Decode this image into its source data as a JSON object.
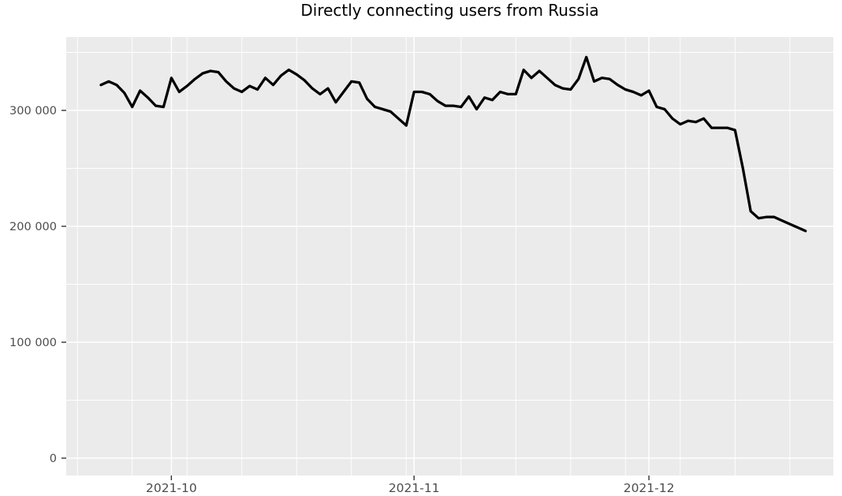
{
  "chart_data": {
    "type": "line",
    "title": "Directly connecting users from Russia",
    "xlabel": "",
    "ylabel": "",
    "legend": "none",
    "grid": "on",
    "panel_bg": "#EBEBEB",
    "grid_color": "#FFFFFF",
    "axis_text_color": "#4D4D4D",
    "tick_color": "#333333",
    "ylim": [
      0,
      364000
    ],
    "x_range": [
      "2021-09-22",
      "2021-12-21"
    ],
    "x_ticks": [
      {
        "label": "2021-10",
        "date": "2021-10-01"
      },
      {
        "label": "2021-11",
        "date": "2021-11-01"
      },
      {
        "label": "2021-12",
        "date": "2021-12-01"
      }
    ],
    "y_ticks": [
      {
        "label": "0",
        "value": 0
      },
      {
        "label": "100 000",
        "value": 100000
      },
      {
        "label": "200 000",
        "value": 200000
      },
      {
        "label": "300 000",
        "value": 300000
      }
    ],
    "y_minor_ticks": [
      50000,
      150000,
      250000,
      350000
    ],
    "series": [
      {
        "name": "directly-connecting-users",
        "color": "#000000",
        "frequency": "daily",
        "dates": [
          "2021-09-22",
          "2021-09-23",
          "2021-09-24",
          "2021-09-25",
          "2021-09-26",
          "2021-09-27",
          "2021-09-28",
          "2021-09-29",
          "2021-09-30",
          "2021-10-01",
          "2021-10-02",
          "2021-10-03",
          "2021-10-04",
          "2021-10-05",
          "2021-10-06",
          "2021-10-07",
          "2021-10-08",
          "2021-10-09",
          "2021-10-10",
          "2021-10-11",
          "2021-10-12",
          "2021-10-13",
          "2021-10-14",
          "2021-10-15",
          "2021-10-16",
          "2021-10-17",
          "2021-10-18",
          "2021-10-19",
          "2021-10-20",
          "2021-10-21",
          "2021-10-22",
          "2021-10-23",
          "2021-10-24",
          "2021-10-25",
          "2021-10-26",
          "2021-10-27",
          "2021-10-28",
          "2021-10-29",
          "2021-10-30",
          "2021-10-31",
          "2021-11-01",
          "2021-11-02",
          "2021-11-03",
          "2021-11-04",
          "2021-11-05",
          "2021-11-06",
          "2021-11-07",
          "2021-11-08",
          "2021-11-09",
          "2021-11-10",
          "2021-11-11",
          "2021-11-12",
          "2021-11-13",
          "2021-11-14",
          "2021-11-15",
          "2021-11-16",
          "2021-11-17",
          "2021-11-18",
          "2021-11-19",
          "2021-11-20",
          "2021-11-21",
          "2021-11-22",
          "2021-11-23",
          "2021-11-24",
          "2021-11-25",
          "2021-11-26",
          "2021-11-27",
          "2021-11-28",
          "2021-11-29",
          "2021-11-30",
          "2021-12-01",
          "2021-12-02",
          "2021-12-03",
          "2021-12-04",
          "2021-12-05",
          "2021-12-06",
          "2021-12-07",
          "2021-12-08",
          "2021-12-09",
          "2021-12-10",
          "2021-12-11",
          "2021-12-12",
          "2021-12-13",
          "2021-12-14",
          "2021-12-15",
          "2021-12-16",
          "2021-12-17",
          "2021-12-18",
          "2021-12-19",
          "2021-12-20",
          "2021-12-21"
        ],
        "values": [
          322000,
          325000,
          322000,
          315000,
          303000,
          317000,
          311000,
          304000,
          303000,
          328000,
          316000,
          321000,
          327000,
          332000,
          334000,
          333000,
          325000,
          319000,
          316000,
          321000,
          318000,
          328000,
          322000,
          330000,
          335000,
          331000,
          326000,
          319000,
          314000,
          319000,
          307000,
          316000,
          325000,
          324000,
          310000,
          303000,
          301000,
          299000,
          293000,
          287000,
          316000,
          316000,
          314000,
          308000,
          304000,
          304000,
          303000,
          312000,
          301000,
          311000,
          309000,
          316000,
          314000,
          314000,
          335000,
          328000,
          334000,
          328000,
          322000,
          319000,
          318000,
          327000,
          346000,
          325000,
          328000,
          327000,
          322000,
          318000,
          316000,
          313000,
          317000,
          303000,
          301000,
          293000,
          288000,
          291000,
          290000,
          293000,
          285000,
          285000,
          285000,
          283000,
          250000,
          213000,
          207000,
          208000,
          208000,
          205000,
          202000,
          199000,
          196000
        ]
      }
    ]
  }
}
